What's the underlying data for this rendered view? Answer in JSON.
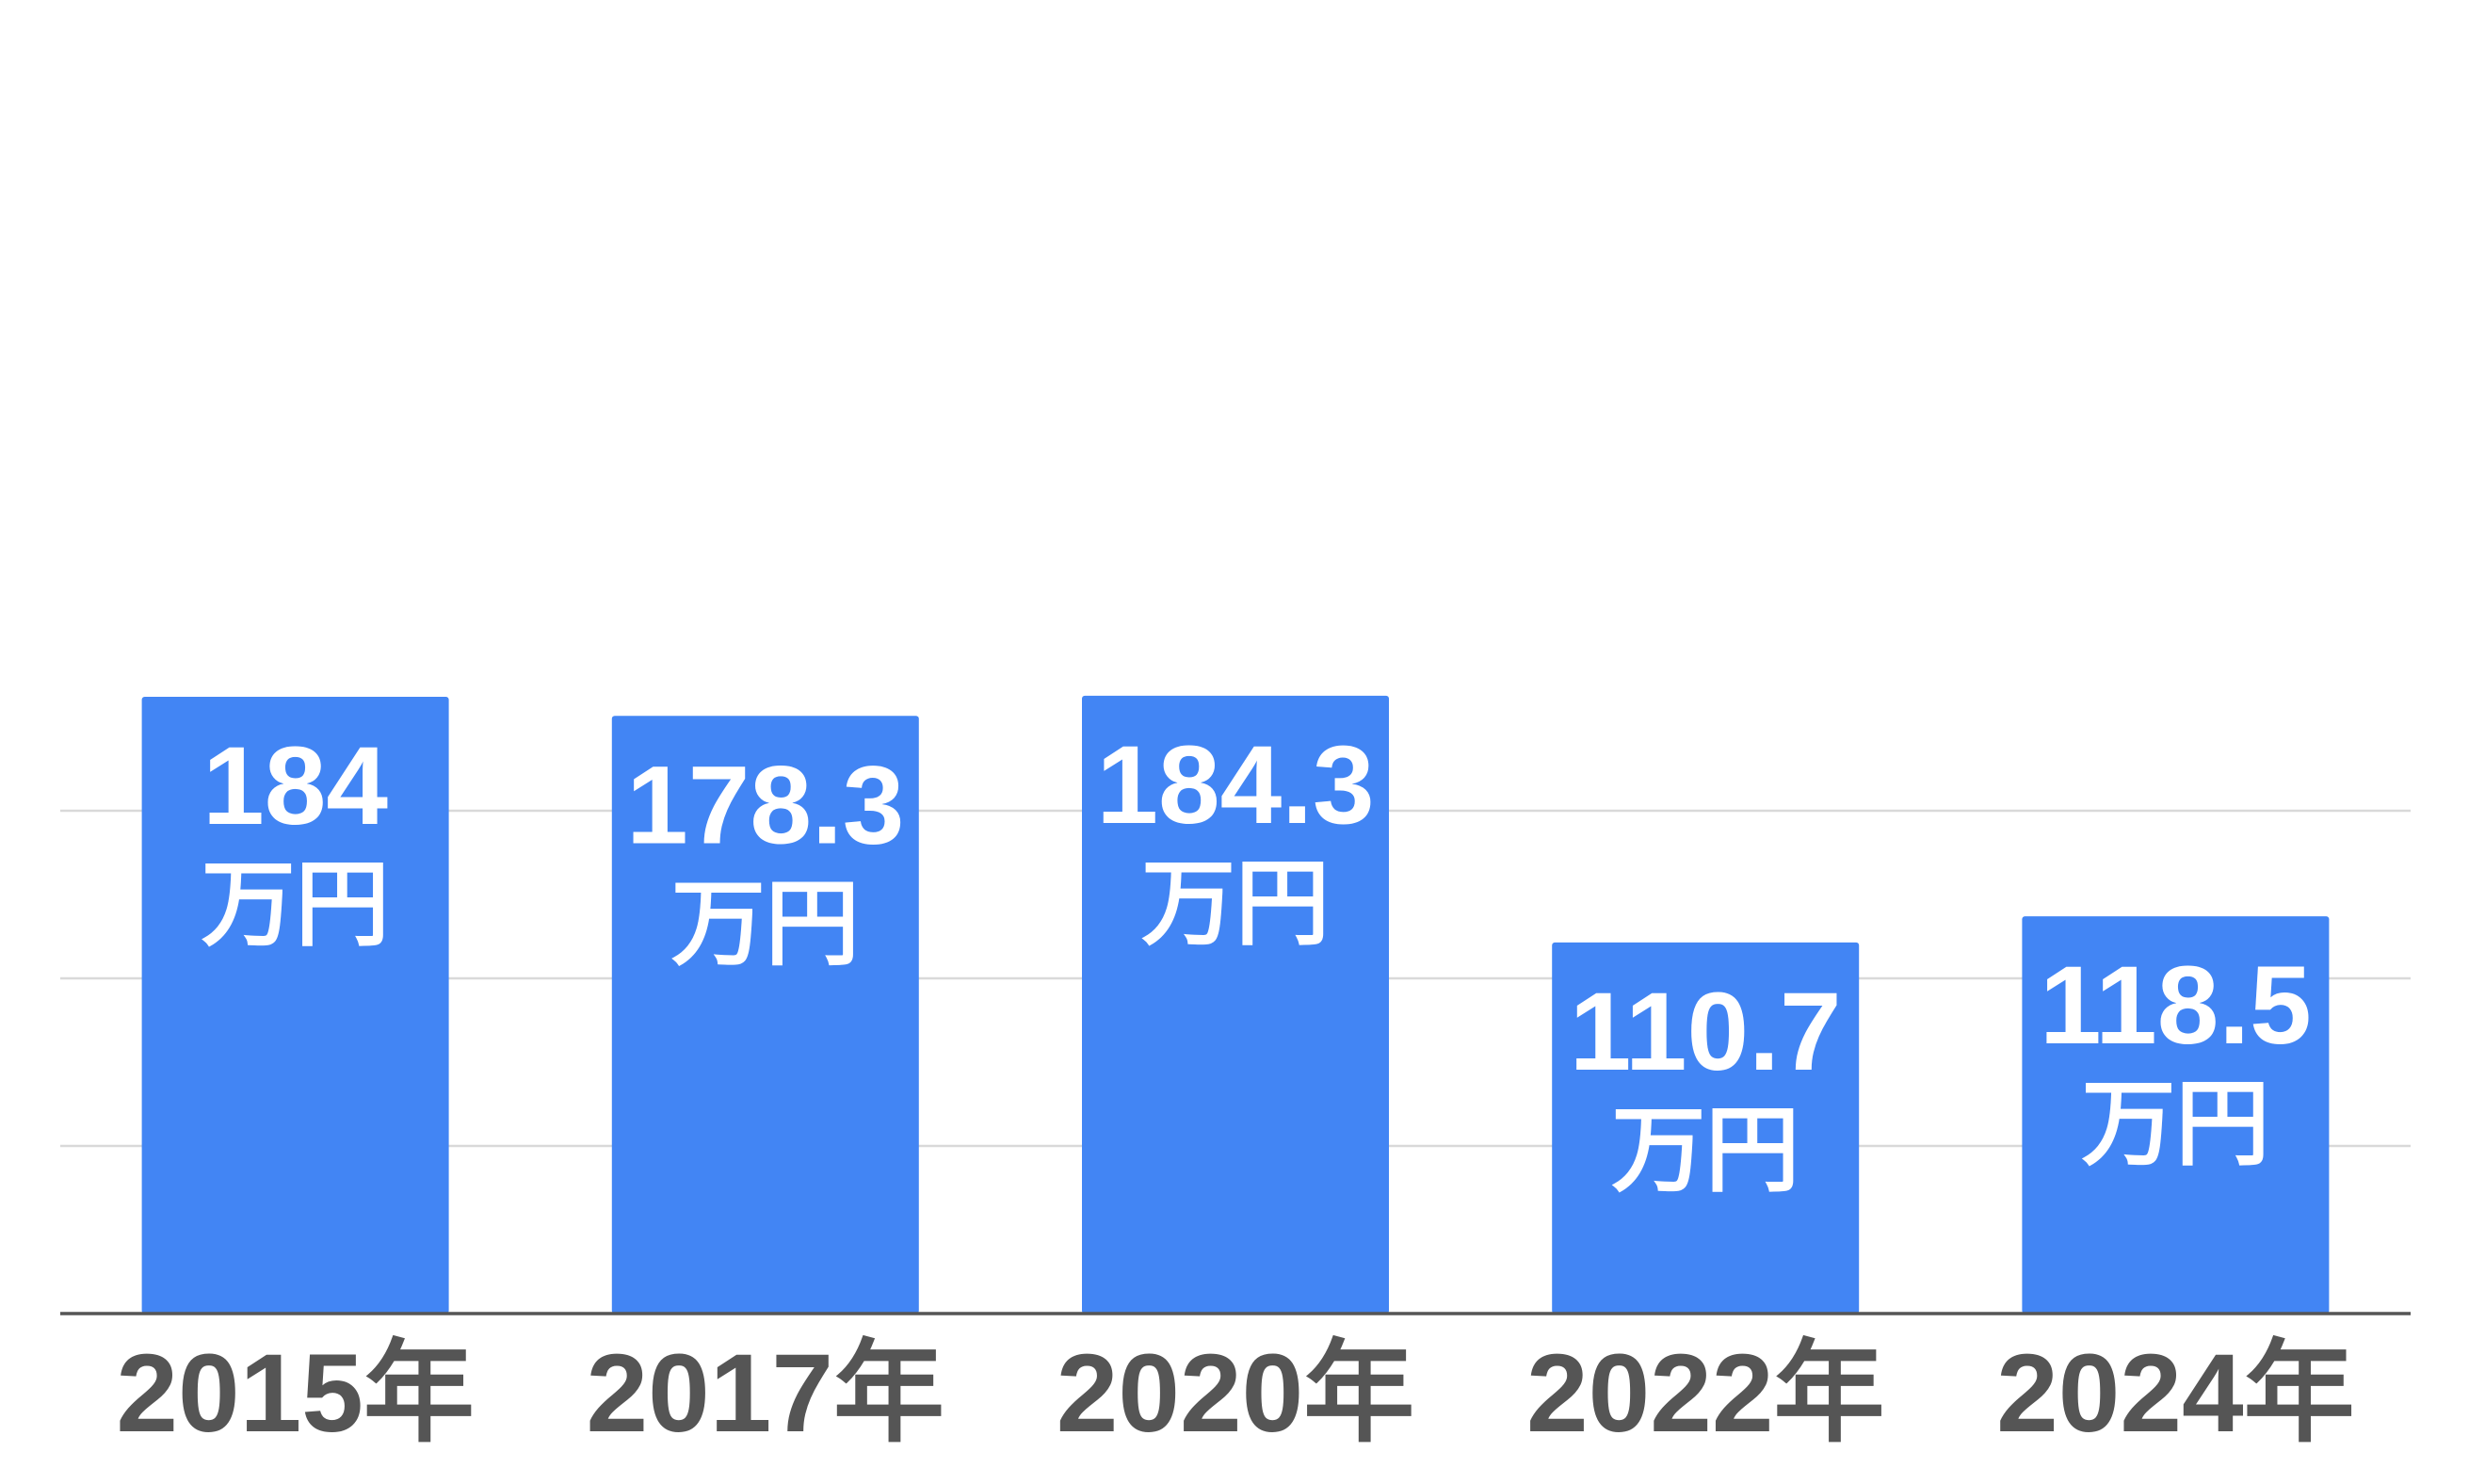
{
  "chart_data": {
    "type": "bar",
    "categories": [
      "2015年",
      "2017年",
      "2020年",
      "2022年",
      "2024年"
    ],
    "values": [
      184,
      178.3,
      184.3,
      110.7,
      118.5
    ],
    "data_labels": [
      "184",
      "178.3",
      "184.3",
      "110.7",
      "118.5"
    ],
    "unit": "万円",
    "title": "",
    "xlabel": "",
    "ylabel": "",
    "ylim": [
      0,
      200
    ],
    "grid": true,
    "legend": "none",
    "bar_color": "#4285f4",
    "label_color": "#ffffff",
    "tick_label_color": "#555555",
    "grid_color": "#d9d9d9",
    "baseline_color": "#555555"
  }
}
